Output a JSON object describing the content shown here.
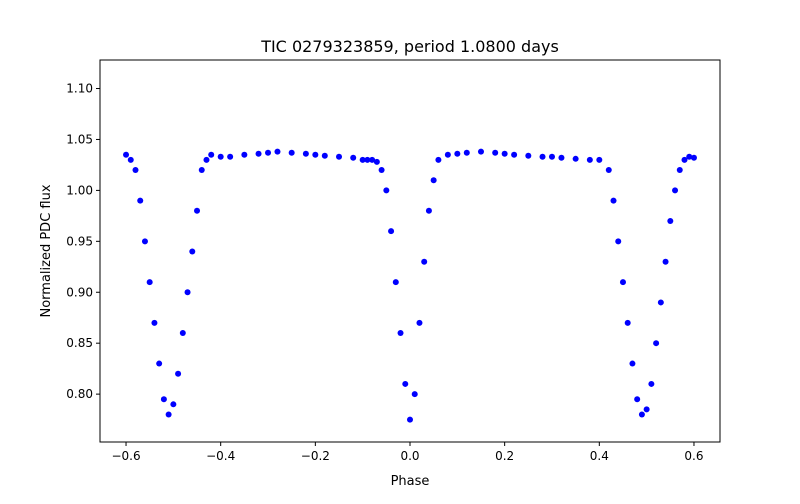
{
  "figure": {
    "title": "TIC 0279323859, period 1.0800 days"
  },
  "chart_data": {
    "type": "scatter",
    "title": "TIC 0279323859, period 1.0800 days",
    "xlabel": "Phase",
    "ylabel": "Normalized PDC flux",
    "xlim": [
      -0.655,
      0.655
    ],
    "ylim": [
      0.753,
      1.128
    ],
    "xticks": [
      -0.6,
      -0.4,
      -0.2,
      0.0,
      0.2,
      0.4,
      0.6
    ],
    "xtick_labels": [
      "−0.6",
      "−0.4",
      "−0.2",
      "0.0",
      "0.2",
      "0.4",
      "0.6"
    ],
    "yticks": [
      0.8,
      0.85,
      0.9,
      0.95,
      1.0,
      1.05,
      1.1
    ],
    "ytick_labels": [
      "0.80",
      "0.85",
      "0.90",
      "0.95",
      "1.00",
      "1.05",
      "1.10"
    ],
    "grid": false,
    "marker_color": "#0000ff",
    "series": [
      {
        "name": "",
        "x": [
          -0.6,
          -0.59,
          -0.58,
          -0.57,
          -0.56,
          -0.55,
          -0.54,
          -0.53,
          -0.52,
          -0.51,
          -0.5,
          -0.49,
          -0.48,
          -0.47,
          -0.46,
          -0.45,
          -0.44,
          -0.43,
          -0.42,
          -0.4,
          -0.38,
          -0.35,
          -0.32,
          -0.3,
          -0.28,
          -0.25,
          -0.22,
          -0.2,
          -0.18,
          -0.15,
          -0.12,
          -0.1,
          -0.09,
          -0.08,
          -0.07,
          -0.06,
          -0.05,
          -0.04,
          -0.03,
          -0.02,
          -0.01,
          0.0,
          0.01,
          0.02,
          0.03,
          0.04,
          0.05,
          0.06,
          0.08,
          0.1,
          0.12,
          0.15,
          0.18,
          0.2,
          0.22,
          0.25,
          0.28,
          0.3,
          0.32,
          0.35,
          0.38,
          0.4,
          0.42,
          0.43,
          0.44,
          0.45,
          0.46,
          0.47,
          0.48,
          0.49,
          0.5,
          0.51,
          0.52,
          0.53,
          0.54,
          0.55,
          0.56,
          0.57,
          0.58,
          0.59,
          0.6
        ],
        "y": [
          1.035,
          1.03,
          1.02,
          0.99,
          0.95,
          0.91,
          0.87,
          0.83,
          0.795,
          0.78,
          0.79,
          0.82,
          0.86,
          0.9,
          0.94,
          0.98,
          1.02,
          1.03,
          1.035,
          1.033,
          1.033,
          1.035,
          1.036,
          1.037,
          1.038,
          1.037,
          1.036,
          1.035,
          1.034,
          1.033,
          1.032,
          1.03,
          1.03,
          1.03,
          1.028,
          1.02,
          1.0,
          0.96,
          0.91,
          0.86,
          0.81,
          0.775,
          0.8,
          0.87,
          0.93,
          0.98,
          1.01,
          1.03,
          1.035,
          1.036,
          1.037,
          1.038,
          1.037,
          1.036,
          1.035,
          1.034,
          1.033,
          1.033,
          1.032,
          1.031,
          1.03,
          1.03,
          1.02,
          0.99,
          0.95,
          0.91,
          0.87,
          0.83,
          0.795,
          0.78,
          0.785,
          0.81,
          0.85,
          0.89,
          0.93,
          0.97,
          1.0,
          1.02,
          1.03,
          1.033,
          1.032
        ]
      }
    ]
  }
}
